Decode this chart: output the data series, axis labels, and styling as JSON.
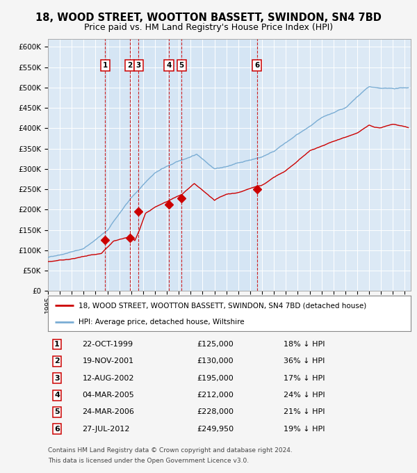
{
  "title": "18, WOOD STREET, WOOTTON BASSETT, SWINDON, SN4 7BD",
  "subtitle": "Price paid vs. HM Land Registry's House Price Index (HPI)",
  "ylim": [
    0,
    620000
  ],
  "yticks": [
    0,
    50000,
    100000,
    150000,
    200000,
    250000,
    300000,
    350000,
    400000,
    450000,
    500000,
    550000,
    600000
  ],
  "ytick_labels": [
    "£0",
    "£50K",
    "£100K",
    "£150K",
    "£200K",
    "£250K",
    "£300K",
    "£350K",
    "£400K",
    "£450K",
    "£500K",
    "£550K",
    "£600K"
  ],
  "xlim_start": 1995.0,
  "xlim_end": 2025.5,
  "background_color": "#dce9f5",
  "fig_bg_color": "#f5f5f5",
  "grid_color": "#ffffff",
  "sale_line_color": "#cc0000",
  "hpi_line_color": "#7aadd4",
  "sale_marker_color": "#cc0000",
  "vline_color": "#cc0000",
  "transactions": [
    {
      "num": 1,
      "date_x": 1999.81,
      "price": 125000,
      "label": "1"
    },
    {
      "num": 2,
      "date_x": 2001.89,
      "price": 130000,
      "label": "2"
    },
    {
      "num": 3,
      "date_x": 2002.62,
      "price": 195000,
      "label": "3"
    },
    {
      "num": 4,
      "date_x": 2005.17,
      "price": 212000,
      "label": "4"
    },
    {
      "num": 5,
      "date_x": 2006.23,
      "price": 228000,
      "label": "5"
    },
    {
      "num": 6,
      "date_x": 2012.57,
      "price": 249950,
      "label": "6"
    }
  ],
  "transaction_table": [
    {
      "num": "1",
      "date": "22-OCT-1999",
      "price": "£125,000",
      "note": "18% ↓ HPI"
    },
    {
      "num": "2",
      "date": "19-NOV-2001",
      "price": "£130,000",
      "note": "36% ↓ HPI"
    },
    {
      "num": "3",
      "date": "12-AUG-2002",
      "price": "£195,000",
      "note": "17% ↓ HPI"
    },
    {
      "num": "4",
      "date": "04-MAR-2005",
      "price": "£212,000",
      "note": "24% ↓ HPI"
    },
    {
      "num": "5",
      "date": "24-MAR-2006",
      "price": "£228,000",
      "note": "21% ↓ HPI"
    },
    {
      "num": "6",
      "date": "27-JUL-2012",
      "price": "£249,950",
      "note": "19% ↓ HPI"
    }
  ],
  "legend_sale": "18, WOOD STREET, WOOTTON BASSETT, SWINDON, SN4 7BD (detached house)",
  "legend_hpi": "HPI: Average price, detached house, Wiltshire",
  "footer_line1": "Contains HM Land Registry data © Crown copyright and database right 2024.",
  "footer_line2": "This data is licensed under the Open Government Licence v3.0."
}
